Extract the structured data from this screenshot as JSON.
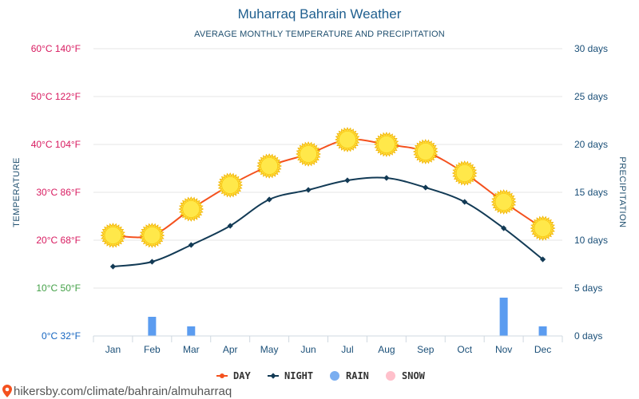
{
  "chart_data": {
    "type": "line",
    "title": "Muharraq Bahrain Weather",
    "subtitle": "AVERAGE MONTHLY TEMPERATURE AND PRECIPITATION",
    "ylabel": "TEMPERATURE",
    "y2label": "PRECIPITATION",
    "categories": [
      "Jan",
      "Feb",
      "Mar",
      "Apr",
      "May",
      "Jun",
      "Jul",
      "Aug",
      "Sep",
      "Oct",
      "Nov",
      "Dec"
    ],
    "ylim": [
      0,
      60
    ],
    "y2lim": [
      0,
      30
    ],
    "y_ticks": [
      {
        "value": 0,
        "label": "0°C 32°F",
        "color": "#1565c0"
      },
      {
        "value": 10,
        "label": "10°C 50°F",
        "color": "#43a047"
      },
      {
        "value": 20,
        "label": "20°C 68°F",
        "color": "#d81b60"
      },
      {
        "value": 30,
        "label": "30°C 86°F",
        "color": "#d81b60"
      },
      {
        "value": 40,
        "label": "40°C 104°F",
        "color": "#d81b60"
      },
      {
        "value": 50,
        "label": "50°C 122°F",
        "color": "#d81b60"
      },
      {
        "value": 60,
        "label": "60°C 140°F",
        "color": "#d81b60"
      }
    ],
    "y2_ticks": [
      {
        "value": 0,
        "label": "0 days"
      },
      {
        "value": 5,
        "label": "5 days"
      },
      {
        "value": 10,
        "label": "10 days"
      },
      {
        "value": 15,
        "label": "15 days"
      },
      {
        "value": 20,
        "label": "20 days"
      },
      {
        "value": 25,
        "label": "25 days"
      },
      {
        "value": 30,
        "label": "30 days"
      }
    ],
    "series": [
      {
        "name": "DAY",
        "type": "line",
        "axis": "left",
        "color": "#f4511e",
        "values": [
          21,
          21,
          26.5,
          31.5,
          35.5,
          38,
          41,
          40,
          38.5,
          34,
          28,
          22.5
        ]
      },
      {
        "name": "NIGHT",
        "type": "line",
        "axis": "left",
        "color": "#123a55",
        "values": [
          14.5,
          15.5,
          19,
          23,
          28.5,
          30.5,
          32.5,
          33,
          31,
          28,
          22.5,
          16
        ]
      },
      {
        "name": "RAIN",
        "type": "bar",
        "axis": "right",
        "color": "#5b9cf0",
        "values": [
          0,
          2,
          1,
          0,
          0,
          0,
          0,
          0,
          0,
          0,
          4,
          1
        ]
      },
      {
        "name": "SNOW",
        "type": "bar",
        "axis": "right",
        "color": "#ffc0cb",
        "values": [
          0,
          0,
          0,
          0,
          0,
          0,
          0,
          0,
          0,
          0,
          0,
          0
        ]
      }
    ],
    "legend": [
      {
        "label": "DAY",
        "color": "#f4511e",
        "symbol": "line-dot"
      },
      {
        "label": "NIGHT",
        "color": "#123a55",
        "symbol": "line-diamond"
      },
      {
        "label": "RAIN",
        "color": "#7aaef0",
        "symbol": "circle"
      },
      {
        "label": "SNOW",
        "color": "#ffc0cb",
        "symbol": "circle"
      }
    ],
    "legend_position": "bottom",
    "grid": true,
    "day_marker_icon": "sun-icon"
  },
  "footer": {
    "icon": "location-pin-icon",
    "text": "hikersby.com/climate/bahrain/almuharraq"
  }
}
